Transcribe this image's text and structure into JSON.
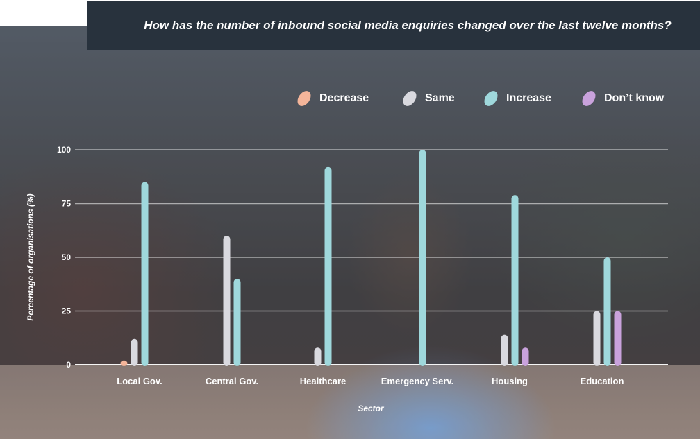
{
  "title": "How has the number of inbound social media enquiries changed over the last twelve months?",
  "legend": [
    {
      "label": "Decrease",
      "color": "#f4b59a"
    },
    {
      "label": "Same",
      "color": "#d9d9df"
    },
    {
      "label": "Increase",
      "color": "#9fd8dc"
    },
    {
      "label": "Don’t know",
      "color": "#c9a2dc"
    }
  ],
  "chart_data": {
    "type": "bar",
    "title": "How has the number of inbound social media enquiries changed over the last twelve months?",
    "xlabel": "Sector",
    "ylabel": "Percentage of organisations (%)",
    "ylim": [
      0,
      100
    ],
    "yticks": [
      0,
      25,
      50,
      75,
      100
    ],
    "grid": true,
    "legend_position": "top-right",
    "categories": [
      "Local Gov.",
      "Central Gov.",
      "Healthcare",
      "Emergency Serv.",
      "Housing",
      "Education"
    ],
    "series": [
      {
        "name": "Decrease",
        "color": "#f4b59a",
        "values": [
          2,
          0,
          0,
          0,
          0,
          0
        ]
      },
      {
        "name": "Same",
        "color": "#d9d9df",
        "values": [
          12,
          60,
          8,
          0,
          14,
          25
        ]
      },
      {
        "name": "Increase",
        "color": "#9fd8dc",
        "values": [
          85,
          40,
          92,
          100,
          79,
          50
        ]
      },
      {
        "name": "Don’t know",
        "color": "#c9a2dc",
        "values": [
          0,
          0,
          0,
          0,
          8,
          25
        ]
      }
    ]
  }
}
